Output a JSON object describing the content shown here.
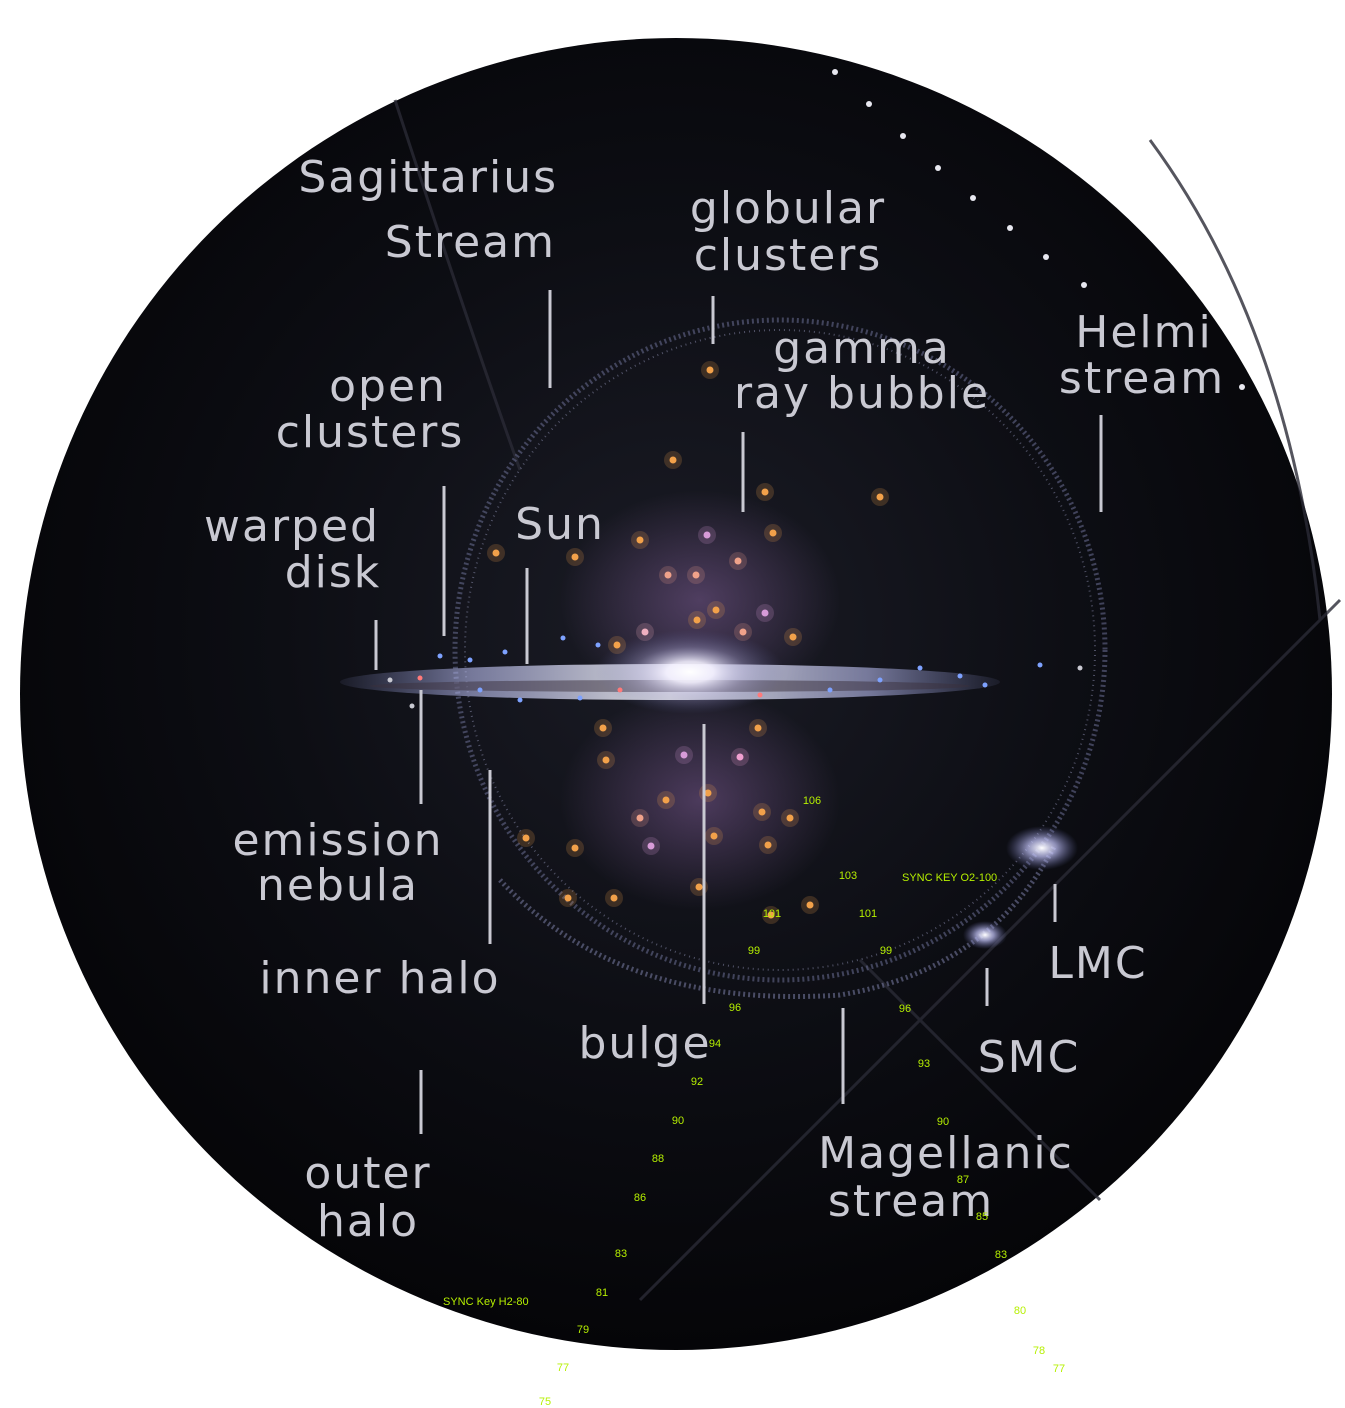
{
  "labels": {
    "sagittarius_1": "Sagittarius",
    "sagittarius_2": "Stream",
    "globular_1": "globular",
    "globular_2": "clusters",
    "gamma_1": "gamma",
    "gamma_2": "ray bubble",
    "helmi_1": "Helmi",
    "helmi_2": "stream",
    "open_1": "open",
    "open_2": "clusters",
    "sun": "Sun",
    "warped_1": "warped",
    "warped_2": "disk",
    "emission_1": "emission",
    "emission_2": "nebula",
    "inner_halo": "inner halo",
    "bulge": "bulge",
    "lmc": "LMC",
    "smc": "SMC",
    "magellanic_1": "Magellanic",
    "magellanic_2": "stream",
    "outer_1": "outer",
    "outer_2": "halo"
  },
  "overlay": {
    "key_left": "SYNC Key H2-80",
    "key_right": "SYNC KEY O2-100",
    "left_scale": [
      "106",
      "103",
      "101",
      "99",
      "96",
      "94",
      "92",
      "90",
      "88",
      "86",
      "83",
      "81",
      "79",
      "77",
      "75"
    ],
    "right_scale": [
      "101",
      "99",
      "96",
      "93",
      "90",
      "87",
      "85",
      "83",
      "80",
      "78",
      "77"
    ]
  },
  "colors": {
    "background": "#000000",
    "label": "#c9c9d2",
    "overlay": "#b6f000"
  }
}
